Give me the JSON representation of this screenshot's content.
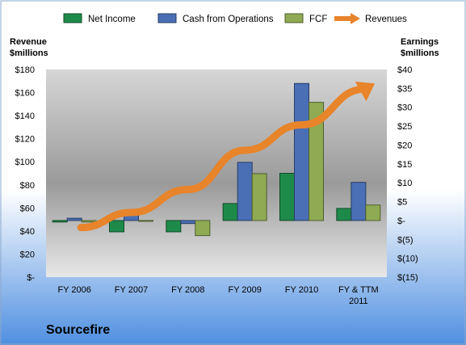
{
  "chart_data": {
    "type": "bar",
    "title": "Sourcefire",
    "categories": [
      "FY 2006",
      "FY 2007",
      "FY 2008",
      "FY 2009",
      "FY 2010",
      "FY & TTM 2011"
    ],
    "left_axis": {
      "label_line1": "Revenue",
      "label_line2": "$millions",
      "ylim": [
        0,
        180
      ],
      "ticks": [
        {
          "v": 0,
          "label": "$-"
        },
        {
          "v": 20,
          "label": "$20"
        },
        {
          "v": 40,
          "label": "$40"
        },
        {
          "v": 60,
          "label": "$60"
        },
        {
          "v": 80,
          "label": "$80"
        },
        {
          "v": 100,
          "label": "$100"
        },
        {
          "v": 120,
          "label": "$120"
        },
        {
          "v": 140,
          "label": "$140"
        },
        {
          "v": 160,
          "label": "$160"
        },
        {
          "v": 180,
          "label": "$180"
        }
      ]
    },
    "right_axis": {
      "label_line1": "Earnings",
      "label_line2": "$millions",
      "ylim": [
        -15,
        40
      ],
      "ticks": [
        {
          "v": -15,
          "label": "$(15)"
        },
        {
          "v": -10,
          "label": "$(10)"
        },
        {
          "v": -5,
          "label": "$(5)"
        },
        {
          "v": 0,
          "label": "$-"
        },
        {
          "v": 5,
          "label": "$5"
        },
        {
          "v": 10,
          "label": "$10"
        },
        {
          "v": 15,
          "label": "$15"
        },
        {
          "v": 20,
          "label": "$20"
        },
        {
          "v": 25,
          "label": "$25"
        },
        {
          "v": 30,
          "label": "$30"
        },
        {
          "v": 35,
          "label": "$35"
        },
        {
          "v": 40,
          "label": "$40"
        }
      ]
    },
    "series": [
      {
        "name": "Net Income",
        "axis": "right",
        "kind": "bar",
        "color": "#1e8a4a",
        "values": [
          -0.4,
          -3.0,
          -3.0,
          4.5,
          12.5,
          3.2
        ]
      },
      {
        "name": "Cash from Operations",
        "axis": "right",
        "kind": "bar",
        "color": "#4a6fb5",
        "values": [
          0.6,
          1.7,
          -0.8,
          15.4,
          36.3,
          10.1
        ]
      },
      {
        "name": "FCF",
        "axis": "right",
        "kind": "bar",
        "color": "#8faa52",
        "values": [
          -0.4,
          -0.1,
          -4.0,
          12.4,
          31.3,
          4.1
        ]
      },
      {
        "name": "Revenues",
        "axis": "left",
        "kind": "trend-arrow",
        "color": "#e8842a",
        "values": [
          43,
          56,
          76,
          110,
          132,
          163
        ]
      }
    ],
    "legend_position": "top",
    "grid": false
  },
  "colors": {
    "page_top": "#ffffff",
    "page_bottom": "#4f8fe0",
    "plot_top": "#bdbdbd",
    "plot_bottom": "#dcdcdc"
  }
}
